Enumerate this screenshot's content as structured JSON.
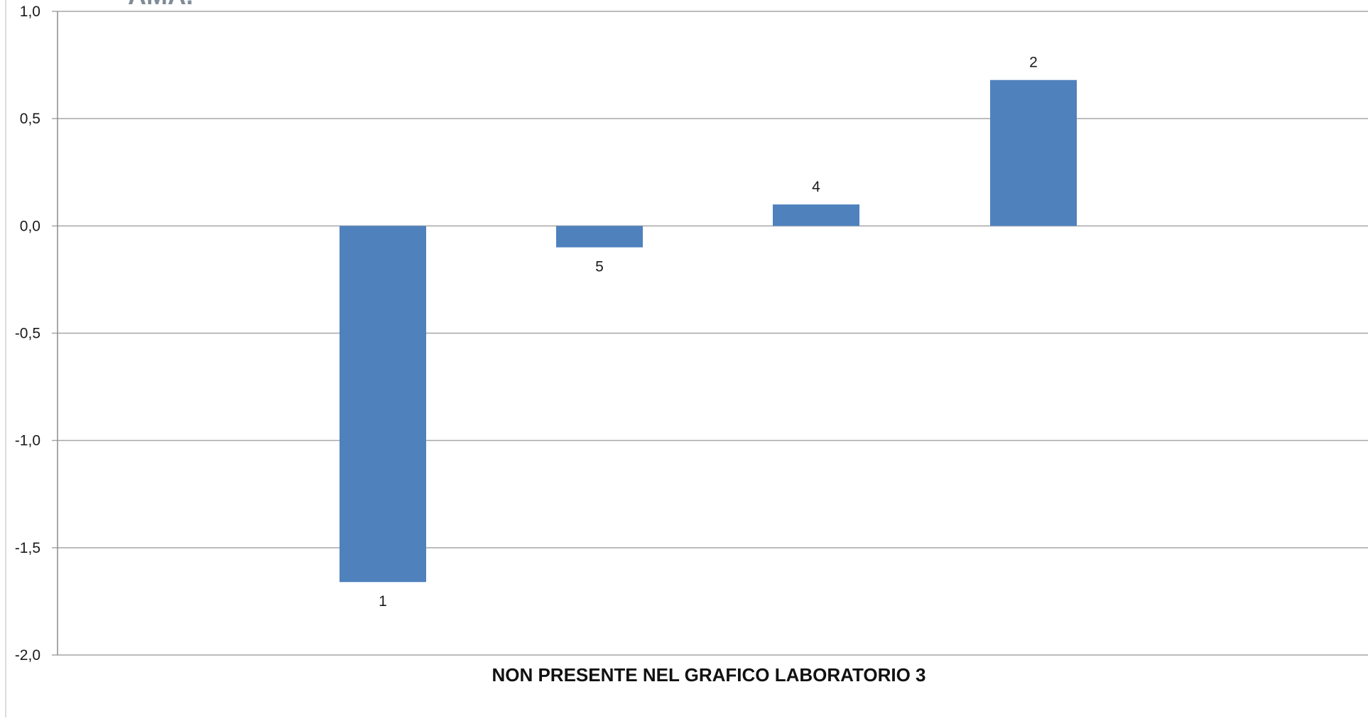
{
  "chart_data": {
    "type": "bar",
    "title": "",
    "xlabel": "NON PRESENTE  NEL GRAFICO LABORATORIO  3",
    "ylabel": "",
    "ylim": [
      -2.0,
      1.0
    ],
    "yticks": [
      1.0,
      0.5,
      0.0,
      -0.5,
      -1.0,
      -1.5,
      -2.0
    ],
    "ytick_labels": [
      "1,0",
      "0,5",
      "0,0",
      "-0,5",
      "-1,0",
      "-1,5",
      "-2,0"
    ],
    "grid": true,
    "legend": "none",
    "categories": [
      "1",
      "5",
      "4",
      "2"
    ],
    "values": [
      -1.66,
      -0.1,
      0.1,
      0.68
    ],
    "data_labels": [
      "1",
      "5",
      "4",
      "2"
    ],
    "colors": {
      "bar": "#4f81bd",
      "gridline": "#a6a6a6",
      "axis": "#8c8c8c",
      "corner_title": "#7f8c99"
    }
  },
  "corner_title": "AMA."
}
